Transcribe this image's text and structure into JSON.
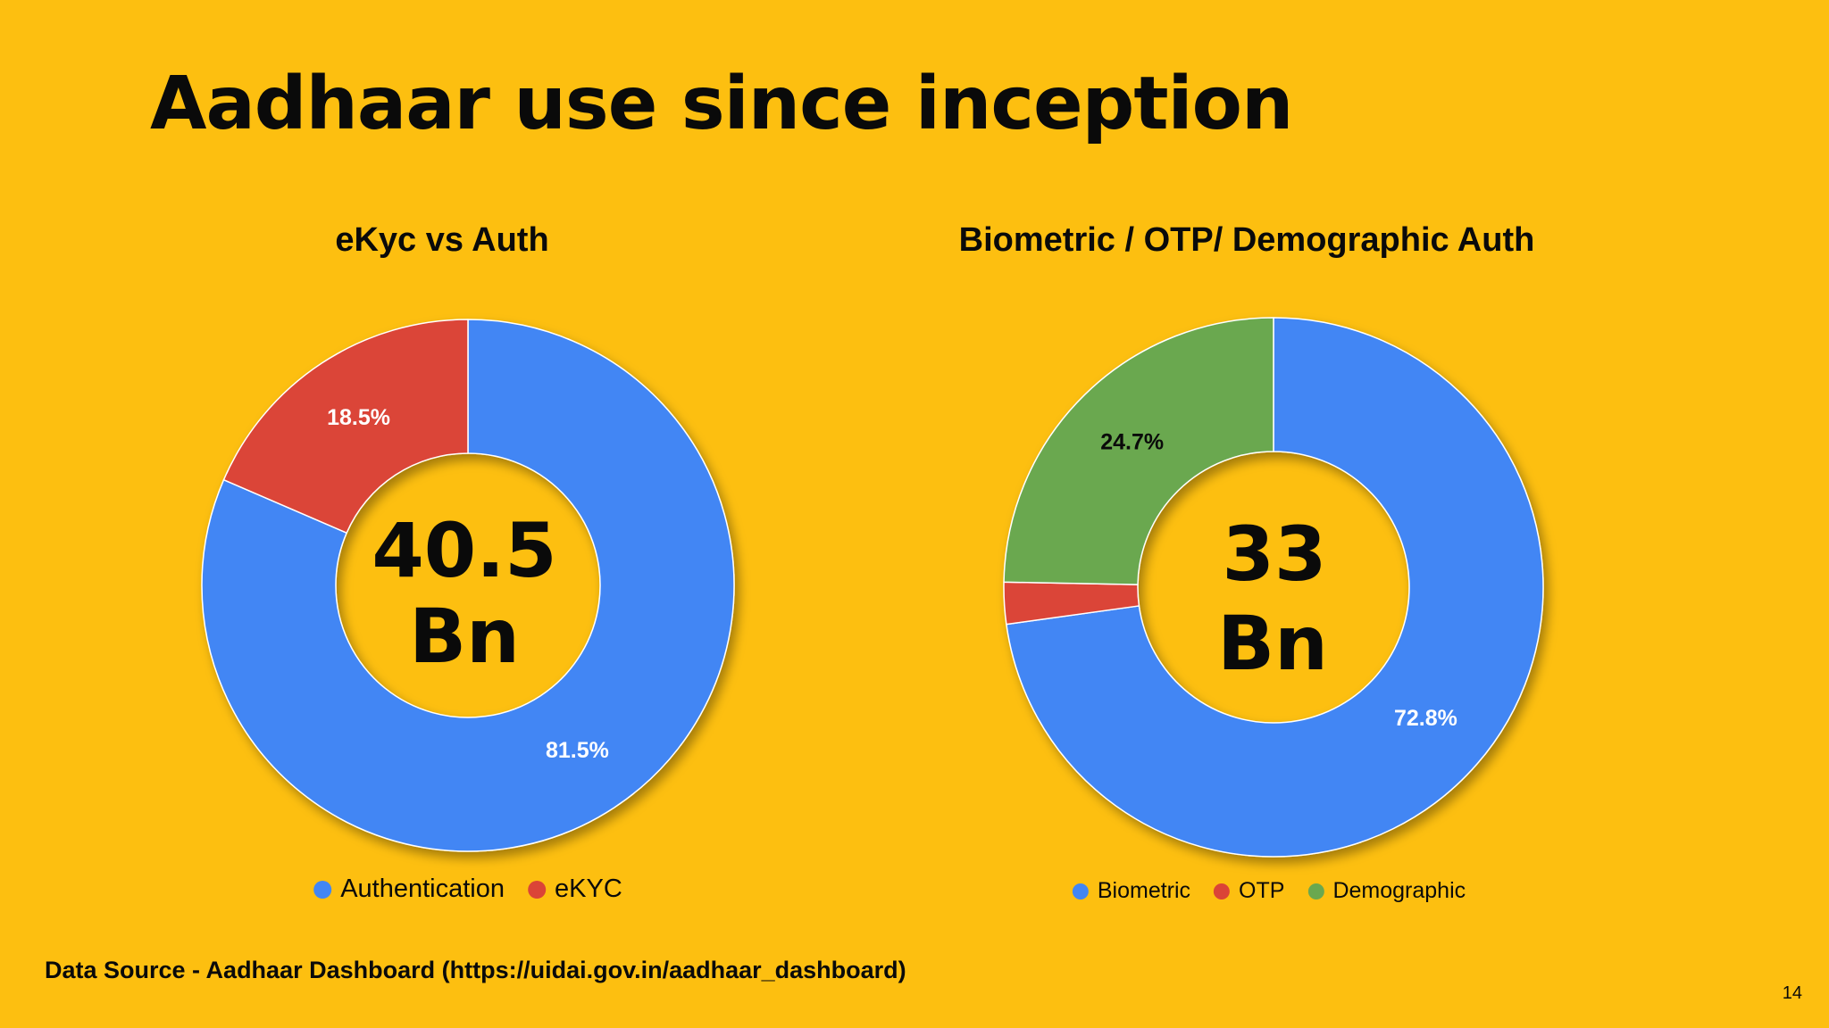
{
  "slide": {
    "title": "Aadhaar use since inception",
    "source": "Data Source - Aadhaar Dashboard (https://uidai.gov.in/aadhaar_dashboard)",
    "page_number": "14"
  },
  "colors": {
    "background": "#FDBF10",
    "blue": "#4286F4",
    "red": "#DB4437",
    "green": "#6AA84F"
  },
  "chart_data": [
    {
      "type": "pie",
      "variant": "donut",
      "title": "eKyc vs Auth",
      "center_label": [
        "40.5",
        "Bn"
      ],
      "categories": [
        "Authentication",
        "eKYC"
      ],
      "values": [
        81.5,
        18.5
      ],
      "data_labels": [
        "81.5%",
        "18.5%"
      ],
      "colors": [
        "#4286F4",
        "#DB4437"
      ],
      "label_colors": [
        "#FFFFFF",
        "#FFFFFF"
      ],
      "show_label": [
        true,
        true
      ],
      "legend_position": "bottom"
    },
    {
      "type": "pie",
      "variant": "donut",
      "title": "Biometric / OTP/ Demographic Auth",
      "center_label": [
        "33",
        "Bn"
      ],
      "categories": [
        "Biometric",
        "OTP",
        "Demographic"
      ],
      "values": [
        72.8,
        2.5,
        24.7
      ],
      "data_labels": [
        "72.8%",
        "",
        "24.7%"
      ],
      "colors": [
        "#4286F4",
        "#DB4437",
        "#6AA84F"
      ],
      "label_colors": [
        "#FFFFFF",
        "#FFFFFF",
        "#0A0A0A"
      ],
      "show_label": [
        true,
        false,
        true
      ],
      "legend_position": "bottom"
    }
  ]
}
